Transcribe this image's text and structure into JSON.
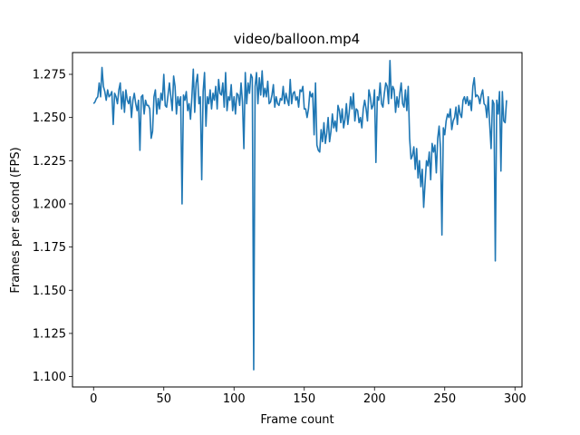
{
  "chart_data": {
    "type": "line",
    "title": "video/balloon.mp4",
    "xlabel": "Frame count",
    "ylabel": "Frames per second (FPS)",
    "xlim": [
      -15,
      305
    ],
    "ylim": [
      1.094,
      1.2876
    ],
    "xticks": [
      0,
      50,
      100,
      150,
      200,
      250,
      300
    ],
    "yticks": [
      1.1,
      1.125,
      1.15,
      1.175,
      1.2,
      1.225,
      1.25,
      1.275
    ],
    "ytick_labels": [
      "1.100",
      "1.125",
      "1.150",
      "1.175",
      "1.200",
      "1.225",
      "1.250",
      "1.275"
    ],
    "grid": false,
    "series": [
      {
        "color": "#1f77b4",
        "x_start": 0,
        "x_step": 1,
        "values": [
          1.258,
          1.259,
          1.261,
          1.262,
          1.27,
          1.262,
          1.279,
          1.268,
          1.265,
          1.26,
          1.266,
          1.262,
          1.263,
          1.265,
          1.246,
          1.264,
          1.262,
          1.258,
          1.266,
          1.27,
          1.255,
          1.265,
          1.253,
          1.266,
          1.26,
          1.258,
          1.262,
          1.25,
          1.26,
          1.264,
          1.258,
          1.254,
          1.26,
          1.231,
          1.262,
          1.263,
          1.252,
          1.26,
          1.257,
          1.257,
          1.255,
          1.238,
          1.242,
          1.262,
          1.266,
          1.252,
          1.261,
          1.255,
          1.264,
          1.26,
          1.275,
          1.257,
          1.256,
          1.263,
          1.27,
          1.262,
          1.254,
          1.274,
          1.268,
          1.252,
          1.262,
          1.257,
          1.262,
          1.2,
          1.263,
          1.26,
          1.265,
          1.254,
          1.258,
          1.249,
          1.262,
          1.278,
          1.253,
          1.27,
          1.275,
          1.258,
          1.262,
          1.214,
          1.265,
          1.276,
          1.245,
          1.262,
          1.258,
          1.266,
          1.255,
          1.264,
          1.26,
          1.268,
          1.255,
          1.272,
          1.264,
          1.263,
          1.27,
          1.256,
          1.276,
          1.254,
          1.262,
          1.26,
          1.269,
          1.254,
          1.262,
          1.252,
          1.264,
          1.263,
          1.257,
          1.27,
          1.259,
          1.232,
          1.276,
          1.258,
          1.27,
          1.264,
          1.275,
          1.273,
          1.104,
          1.268,
          1.276,
          1.258,
          1.273,
          1.263,
          1.277,
          1.262,
          1.267,
          1.262,
          1.271,
          1.258,
          1.259,
          1.263,
          1.269,
          1.256,
          1.262,
          1.258,
          1.257,
          1.261,
          1.26,
          1.268,
          1.258,
          1.264,
          1.26,
          1.257,
          1.272,
          1.258,
          1.264,
          1.265,
          1.26,
          1.262,
          1.256,
          1.266,
          1.265,
          1.268,
          1.255,
          1.255,
          1.25,
          1.255,
          1.265,
          1.262,
          1.264,
          1.24,
          1.27,
          1.234,
          1.231,
          1.23,
          1.243,
          1.236,
          1.247,
          1.235,
          1.241,
          1.25,
          1.236,
          1.242,
          1.252,
          1.244,
          1.248,
          1.242,
          1.257,
          1.254,
          1.247,
          1.255,
          1.244,
          1.249,
          1.258,
          1.246,
          1.253,
          1.262,
          1.255,
          1.264,
          1.248,
          1.255,
          1.254,
          1.247,
          1.25,
          1.244,
          1.255,
          1.26,
          1.255,
          1.248,
          1.266,
          1.262,
          1.255,
          1.257,
          1.266,
          1.224,
          1.262,
          1.26,
          1.27,
          1.258,
          1.256,
          1.264,
          1.27,
          1.268,
          1.258,
          1.283,
          1.261,
          1.268,
          1.266,
          1.253,
          1.262,
          1.256,
          1.264,
          1.27,
          1.258,
          1.256,
          1.266,
          1.254,
          1.268,
          1.238,
          1.226,
          1.228,
          1.233,
          1.22,
          1.232,
          1.215,
          1.225,
          1.21,
          1.22,
          1.198,
          1.212,
          1.225,
          1.222,
          1.23,
          1.214,
          1.235,
          1.23,
          1.234,
          1.218,
          1.238,
          1.245,
          1.232,
          1.182,
          1.244,
          1.24,
          1.248,
          1.252,
          1.25,
          1.255,
          1.243,
          1.248,
          1.25,
          1.256,
          1.246,
          1.257,
          1.252,
          1.25,
          1.26,
          1.262,
          1.258,
          1.262,
          1.257,
          1.26,
          1.254,
          1.268,
          1.273,
          1.262,
          1.263,
          1.262,
          1.258,
          1.263,
          1.266,
          1.258,
          1.257,
          1.25,
          1.262,
          1.246,
          1.232,
          1.26,
          1.258,
          1.167,
          1.26,
          1.252,
          1.265,
          1.219,
          1.265,
          1.248,
          1.247,
          1.26
        ]
      }
    ]
  }
}
